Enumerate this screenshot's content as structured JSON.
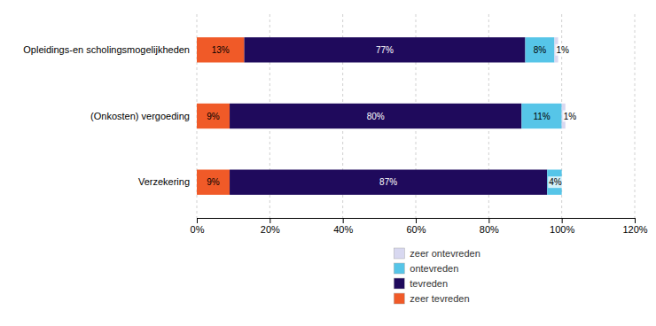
{
  "chart_data": {
    "type": "bar",
    "orientation": "horizontal",
    "stacked": true,
    "categories": [
      "Verzekering",
      "(Onkosten) vergoeding",
      "Opleidings-en scholingsmogelijkheden"
    ],
    "series": [
      {
        "name": "zeer tevreden",
        "color": "#F05A28",
        "values": [
          9,
          9,
          13
        ],
        "value_labels": [
          "9%",
          "9%",
          "13%"
        ]
      },
      {
        "name": "tevreden",
        "color": "#1F0A5C",
        "values": [
          87,
          80,
          77
        ],
        "value_labels": [
          "87%",
          "80%",
          "77%"
        ]
      },
      {
        "name": "ontevreden",
        "color": "#56C5E8",
        "values": [
          4,
          11,
          8
        ],
        "value_labels": [
          "4%",
          "11%",
          "8%"
        ]
      },
      {
        "name": "zeer ontevreden",
        "color": "#D8D8F0",
        "values": [
          0,
          1,
          1
        ],
        "value_labels": [
          null,
          "1%",
          "1%"
        ]
      }
    ],
    "xlim": [
      0,
      120
    ],
    "xticks": [
      {
        "value": 0,
        "label": "0%"
      },
      {
        "value": 20,
        "label": "20%"
      },
      {
        "value": 40,
        "label": "40%"
      },
      {
        "value": 60,
        "label": "60%"
      },
      {
        "value": 80,
        "label": "80%"
      },
      {
        "value": 100,
        "label": "100%"
      },
      {
        "value": 120,
        "label": "120%"
      }
    ],
    "grid": true,
    "data_labels": true,
    "legend": "bottom"
  }
}
